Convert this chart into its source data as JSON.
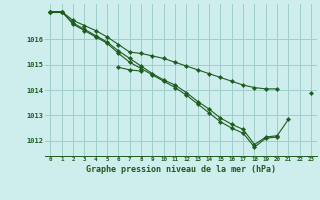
{
  "title": "Graphe pression niveau de la mer (hPa)",
  "background_color": "#ceeeed",
  "grid_color": "#9dcfcc",
  "line_color": "#1e5c1e",
  "xlim": [
    -0.5,
    23.5
  ],
  "ylim": [
    1011.4,
    1017.4
  ],
  "yticks": [
    1012,
    1013,
    1014,
    1015,
    1016
  ],
  "xticks": [
    0,
    1,
    2,
    3,
    4,
    5,
    6,
    7,
    8,
    9,
    10,
    11,
    12,
    13,
    14,
    15,
    16,
    17,
    18,
    19,
    20,
    21,
    22,
    23
  ],
  "series": [
    [
      1017.1,
      1017.1,
      1016.75,
      1016.55,
      1016.35,
      1016.1,
      1015.8,
      1015.5,
      1015.45,
      1015.35,
      1015.25,
      1015.1,
      1014.95,
      1014.8,
      1014.65,
      1014.5,
      1014.35,
      1014.2,
      1014.1,
      1014.05,
      1014.05,
      null,
      null,
      1013.9
    ],
    [
      1017.1,
      1017.1,
      1016.65,
      1016.4,
      1016.15,
      1015.9,
      1015.55,
      1015.25,
      1014.95,
      1014.65,
      1014.4,
      1014.2,
      1013.9,
      1013.55,
      1013.25,
      1012.9,
      1012.65,
      1012.45,
      1011.85,
      1012.15,
      1012.2,
      1012.85,
      null,
      null
    ],
    [
      1017.1,
      1017.1,
      1016.6,
      1016.35,
      1016.1,
      1015.85,
      1015.45,
      1015.1,
      1014.85,
      1014.6,
      1014.35,
      1014.1,
      1013.8,
      1013.45,
      1013.1,
      1012.75,
      1012.5,
      1012.3,
      1011.75,
      1012.1,
      1012.15,
      null,
      null,
      null
    ],
    [
      1017.1,
      1017.1,
      null,
      null,
      null,
      null,
      1014.9,
      1014.8,
      1014.75,
      null,
      null,
      null,
      null,
      null,
      null,
      null,
      null,
      null,
      null,
      null,
      null,
      null,
      null,
      null
    ]
  ]
}
